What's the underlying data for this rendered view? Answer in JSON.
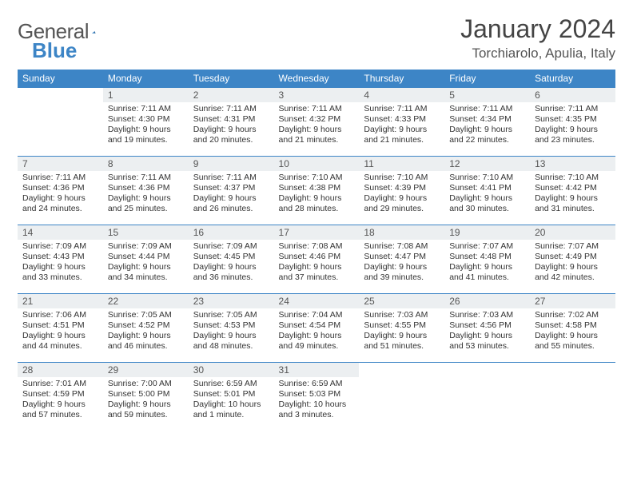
{
  "logo": {
    "word1": "General",
    "word2": "Blue"
  },
  "title": "January 2024",
  "location": "Torchiarolo, Apulia, Italy",
  "colors": {
    "header_bg": "#3d85c6",
    "daynum_bg": "#eceff1",
    "text": "#333333"
  },
  "weekdays": [
    "Sunday",
    "Monday",
    "Tuesday",
    "Wednesday",
    "Thursday",
    "Friday",
    "Saturday"
  ],
  "weeks": [
    [
      null,
      {
        "n": "1",
        "sr": "Sunrise: 7:11 AM",
        "ss": "Sunset: 4:30 PM",
        "d1": "Daylight: 9 hours",
        "d2": "and 19 minutes."
      },
      {
        "n": "2",
        "sr": "Sunrise: 7:11 AM",
        "ss": "Sunset: 4:31 PM",
        "d1": "Daylight: 9 hours",
        "d2": "and 20 minutes."
      },
      {
        "n": "3",
        "sr": "Sunrise: 7:11 AM",
        "ss": "Sunset: 4:32 PM",
        "d1": "Daylight: 9 hours",
        "d2": "and 21 minutes."
      },
      {
        "n": "4",
        "sr": "Sunrise: 7:11 AM",
        "ss": "Sunset: 4:33 PM",
        "d1": "Daylight: 9 hours",
        "d2": "and 21 minutes."
      },
      {
        "n": "5",
        "sr": "Sunrise: 7:11 AM",
        "ss": "Sunset: 4:34 PM",
        "d1": "Daylight: 9 hours",
        "d2": "and 22 minutes."
      },
      {
        "n": "6",
        "sr": "Sunrise: 7:11 AM",
        "ss": "Sunset: 4:35 PM",
        "d1": "Daylight: 9 hours",
        "d2": "and 23 minutes."
      }
    ],
    [
      {
        "n": "7",
        "sr": "Sunrise: 7:11 AM",
        "ss": "Sunset: 4:36 PM",
        "d1": "Daylight: 9 hours",
        "d2": "and 24 minutes."
      },
      {
        "n": "8",
        "sr": "Sunrise: 7:11 AM",
        "ss": "Sunset: 4:36 PM",
        "d1": "Daylight: 9 hours",
        "d2": "and 25 minutes."
      },
      {
        "n": "9",
        "sr": "Sunrise: 7:11 AM",
        "ss": "Sunset: 4:37 PM",
        "d1": "Daylight: 9 hours",
        "d2": "and 26 minutes."
      },
      {
        "n": "10",
        "sr": "Sunrise: 7:10 AM",
        "ss": "Sunset: 4:38 PM",
        "d1": "Daylight: 9 hours",
        "d2": "and 28 minutes."
      },
      {
        "n": "11",
        "sr": "Sunrise: 7:10 AM",
        "ss": "Sunset: 4:39 PM",
        "d1": "Daylight: 9 hours",
        "d2": "and 29 minutes."
      },
      {
        "n": "12",
        "sr": "Sunrise: 7:10 AM",
        "ss": "Sunset: 4:41 PM",
        "d1": "Daylight: 9 hours",
        "d2": "and 30 minutes."
      },
      {
        "n": "13",
        "sr": "Sunrise: 7:10 AM",
        "ss": "Sunset: 4:42 PM",
        "d1": "Daylight: 9 hours",
        "d2": "and 31 minutes."
      }
    ],
    [
      {
        "n": "14",
        "sr": "Sunrise: 7:09 AM",
        "ss": "Sunset: 4:43 PM",
        "d1": "Daylight: 9 hours",
        "d2": "and 33 minutes."
      },
      {
        "n": "15",
        "sr": "Sunrise: 7:09 AM",
        "ss": "Sunset: 4:44 PM",
        "d1": "Daylight: 9 hours",
        "d2": "and 34 minutes."
      },
      {
        "n": "16",
        "sr": "Sunrise: 7:09 AM",
        "ss": "Sunset: 4:45 PM",
        "d1": "Daylight: 9 hours",
        "d2": "and 36 minutes."
      },
      {
        "n": "17",
        "sr": "Sunrise: 7:08 AM",
        "ss": "Sunset: 4:46 PM",
        "d1": "Daylight: 9 hours",
        "d2": "and 37 minutes."
      },
      {
        "n": "18",
        "sr": "Sunrise: 7:08 AM",
        "ss": "Sunset: 4:47 PM",
        "d1": "Daylight: 9 hours",
        "d2": "and 39 minutes."
      },
      {
        "n": "19",
        "sr": "Sunrise: 7:07 AM",
        "ss": "Sunset: 4:48 PM",
        "d1": "Daylight: 9 hours",
        "d2": "and 41 minutes."
      },
      {
        "n": "20",
        "sr": "Sunrise: 7:07 AM",
        "ss": "Sunset: 4:49 PM",
        "d1": "Daylight: 9 hours",
        "d2": "and 42 minutes."
      }
    ],
    [
      {
        "n": "21",
        "sr": "Sunrise: 7:06 AM",
        "ss": "Sunset: 4:51 PM",
        "d1": "Daylight: 9 hours",
        "d2": "and 44 minutes."
      },
      {
        "n": "22",
        "sr": "Sunrise: 7:05 AM",
        "ss": "Sunset: 4:52 PM",
        "d1": "Daylight: 9 hours",
        "d2": "and 46 minutes."
      },
      {
        "n": "23",
        "sr": "Sunrise: 7:05 AM",
        "ss": "Sunset: 4:53 PM",
        "d1": "Daylight: 9 hours",
        "d2": "and 48 minutes."
      },
      {
        "n": "24",
        "sr": "Sunrise: 7:04 AM",
        "ss": "Sunset: 4:54 PM",
        "d1": "Daylight: 9 hours",
        "d2": "and 49 minutes."
      },
      {
        "n": "25",
        "sr": "Sunrise: 7:03 AM",
        "ss": "Sunset: 4:55 PM",
        "d1": "Daylight: 9 hours",
        "d2": "and 51 minutes."
      },
      {
        "n": "26",
        "sr": "Sunrise: 7:03 AM",
        "ss": "Sunset: 4:56 PM",
        "d1": "Daylight: 9 hours",
        "d2": "and 53 minutes."
      },
      {
        "n": "27",
        "sr": "Sunrise: 7:02 AM",
        "ss": "Sunset: 4:58 PM",
        "d1": "Daylight: 9 hours",
        "d2": "and 55 minutes."
      }
    ],
    [
      {
        "n": "28",
        "sr": "Sunrise: 7:01 AM",
        "ss": "Sunset: 4:59 PM",
        "d1": "Daylight: 9 hours",
        "d2": "and 57 minutes."
      },
      {
        "n": "29",
        "sr": "Sunrise: 7:00 AM",
        "ss": "Sunset: 5:00 PM",
        "d1": "Daylight: 9 hours",
        "d2": "and 59 minutes."
      },
      {
        "n": "30",
        "sr": "Sunrise: 6:59 AM",
        "ss": "Sunset: 5:01 PM",
        "d1": "Daylight: 10 hours",
        "d2": "and 1 minute."
      },
      {
        "n": "31",
        "sr": "Sunrise: 6:59 AM",
        "ss": "Sunset: 5:03 PM",
        "d1": "Daylight: 10 hours",
        "d2": "and 3 minutes."
      },
      null,
      null,
      null
    ]
  ]
}
